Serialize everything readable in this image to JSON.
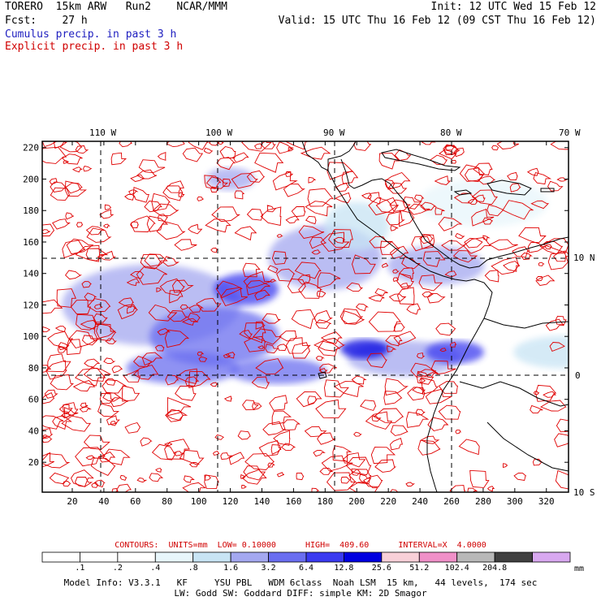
{
  "header": {
    "line1_left": "TORERO  15km ARW   Run2    NCAR/MMM",
    "line1_right": "Init: 12 UTC Wed 15 Feb 12",
    "line2_left": "Fcst:    27 h",
    "line2_right": "Valid: 15 UTC Thu 16 Feb 12 (09 CST Thu 16 Feb 12)",
    "line3": "Cumulus precip. in past 3 h",
    "line4": "Explicit precip. in past 3 h"
  },
  "colors": {
    "cumulus": "#2020c0",
    "explicit": "#d00000",
    "grid": "#000000"
  },
  "chart_data": {
    "type": "heatmap",
    "top_lon_labels": [
      "110 W",
      "100 W",
      "90 W",
      "80 W",
      "70 W"
    ],
    "right_lat_labels": [
      "10 N",
      "0",
      "10 S"
    ],
    "x_ticks": [
      20,
      40,
      60,
      80,
      100,
      120,
      140,
      160,
      180,
      200,
      220,
      240,
      260,
      280,
      300,
      320
    ],
    "y_ticks": [
      20,
      40,
      60,
      80,
      100,
      120,
      140,
      160,
      180,
      200,
      220
    ],
    "xlim": [
      1,
      334
    ],
    "ylim": [
      1,
      224
    ],
    "contours_line": "CONTOURS:  UNITS=mm  LOW= 0.10000      HIGH=  409.60      INTERVAL=X  4.0000",
    "colorbar": {
      "labels": [
        ".1",
        ".2",
        ".4",
        ".8",
        "1.6",
        "3.2",
        "6.4",
        "12.8",
        "25.6",
        "51.2",
        "102.4",
        "204.8"
      ],
      "unit": "mm",
      "colors": [
        "#ffffff",
        "#ffffff",
        "#ffffff",
        "#e8f6fb",
        "#c8e4f4",
        "#a4a8f0",
        "#6a6ef0",
        "#3a3af0",
        "#0000e0",
        "#f8d0d8",
        "#f090c8",
        "#b8b8b8",
        "#404040",
        "#d8a8f0"
      ]
    }
  },
  "footer": {
    "line1": "Model Info: V3.3.1   KF     YSU PBL   WDM 6class  Noah LSM  15 km,   44 levels,  174 sec",
    "line2": "LW: Godd SW: Goddard DIFF: simple KM: 2D Smagor"
  }
}
